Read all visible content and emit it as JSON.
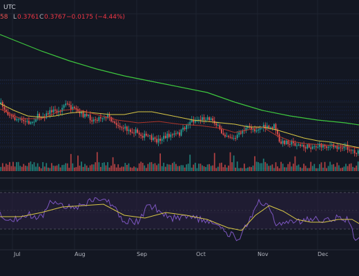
{
  "header": {
    "symbol_partial": "UTC",
    "open_partial": "58",
    "low_label": "L",
    "low_value": "0.3761",
    "close_label": "C",
    "close_value": "0.3767",
    "change_text": "−0.0175 (−4.44%)"
  },
  "colors": {
    "background": "#131722",
    "grid": "#1e2330",
    "up": "#26a69a",
    "down": "#ef5350",
    "ma_long": "#3ec83e",
    "ma_mid": "#d9c846",
    "ma_short": "#c0392b",
    "rsi_line": "#7e57c2",
    "rsi_ma": "#d9c846",
    "rsi_band": "#2a2140",
    "bg_line": "#2962ff"
  },
  "x_axis": {
    "labels": [
      "Jul",
      "Aug",
      "Sep",
      "Oct",
      "Nov",
      "Dec"
    ]
  }
}
